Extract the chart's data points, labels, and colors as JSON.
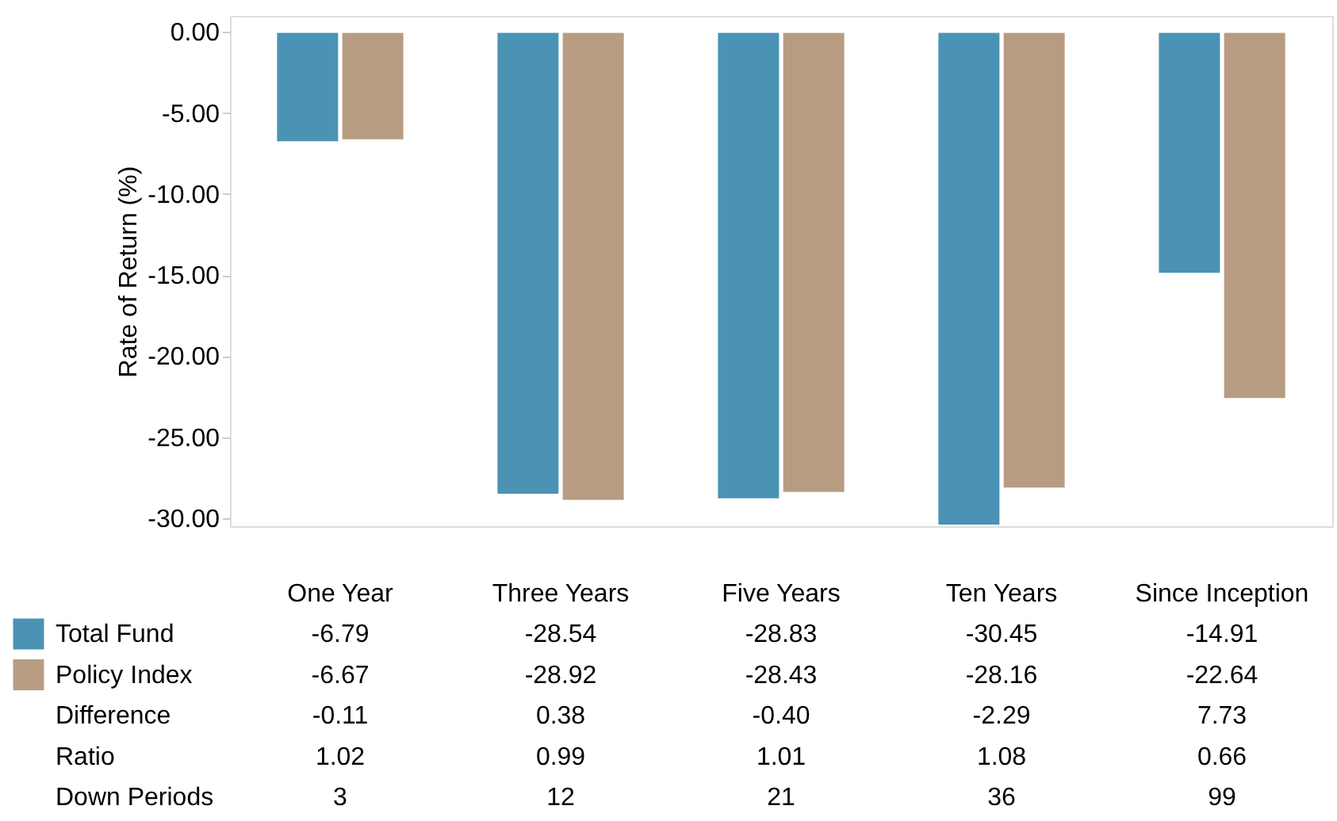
{
  "chart_data": {
    "type": "bar",
    "ylabel": "Rate of Return (%)",
    "categories": [
      "One Year",
      "Three Years",
      "Five Years",
      "Ten Years",
      "Since Inception"
    ],
    "series": [
      {
        "name": "Total Fund",
        "color": "#4a93b5",
        "values": [
          -6.79,
          -28.54,
          -28.83,
          -30.45,
          -14.91
        ]
      },
      {
        "name": "Policy Index",
        "color": "#b89c82",
        "values": [
          -6.67,
          -28.92,
          -28.43,
          -28.16,
          -22.64
        ]
      }
    ],
    "ylim": [
      -30.5,
      1
    ],
    "yticks": [
      {
        "value": 0,
        "label": "0.00"
      },
      {
        "value": -5,
        "label": "-5.00"
      },
      {
        "value": -10,
        "label": "-10.00"
      },
      {
        "value": -15,
        "label": "-15.00"
      },
      {
        "value": -20,
        "label": "-20.00"
      },
      {
        "value": -25,
        "label": "-25.00"
      },
      {
        "value": -30,
        "label": "-30.00"
      }
    ],
    "grid": false,
    "legend": "bottom left",
    "data_labels": true,
    "annotations": [
      "Difference",
      "-0.11",
      "0.38",
      "-0.40",
      "-2.29",
      "7.73",
      "Ratio",
      "1.02",
      "0.99",
      "1.01",
      "1.08",
      "0.66",
      "Down Periods",
      "3",
      "12",
      "21",
      "36",
      "99"
    ]
  }
}
